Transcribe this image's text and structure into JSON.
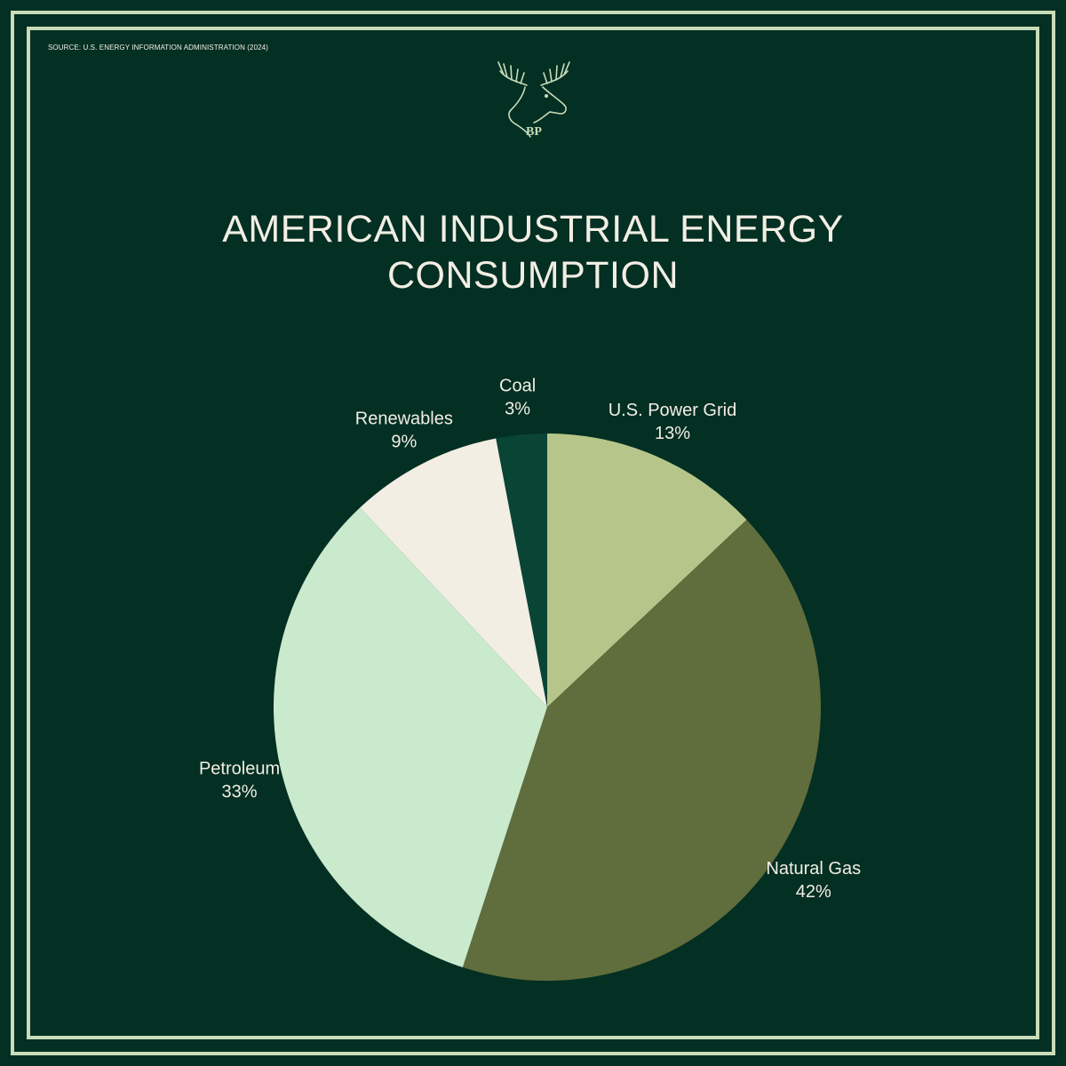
{
  "source": "SOURCE: U.S. ENERGY INFORMATION ADMINISTRATION (2024)",
  "logo_text": "BP",
  "logo_icon": "moose-head-icon",
  "colors": {
    "background": "#042f23",
    "frame": "#c8dcb9",
    "text": "#f2eee4"
  },
  "chart_data": {
    "type": "pie",
    "title": "AMERICAN INDUSTRIAL ENERGY CONSUMPTION",
    "slices": [
      {
        "label": "U.S. Power Grid",
        "value": 13,
        "value_label": "13%",
        "color": "#b6c68a"
      },
      {
        "label": "Natural Gas",
        "value": 42,
        "value_label": "42%",
        "color": "#606d3c"
      },
      {
        "label": "Petroleum",
        "value": 33,
        "value_label": "33%",
        "color": "#caeacd"
      },
      {
        "label": "Renewables",
        "value": 9,
        "value_label": "9%",
        "color": "#f2eee4"
      },
      {
        "label": "Coal",
        "value": 3,
        "value_label": "3%",
        "color": "#0a4435"
      }
    ],
    "start": "12 o'clock",
    "direction": "clockwise",
    "legend": "none",
    "labels": "outside"
  }
}
